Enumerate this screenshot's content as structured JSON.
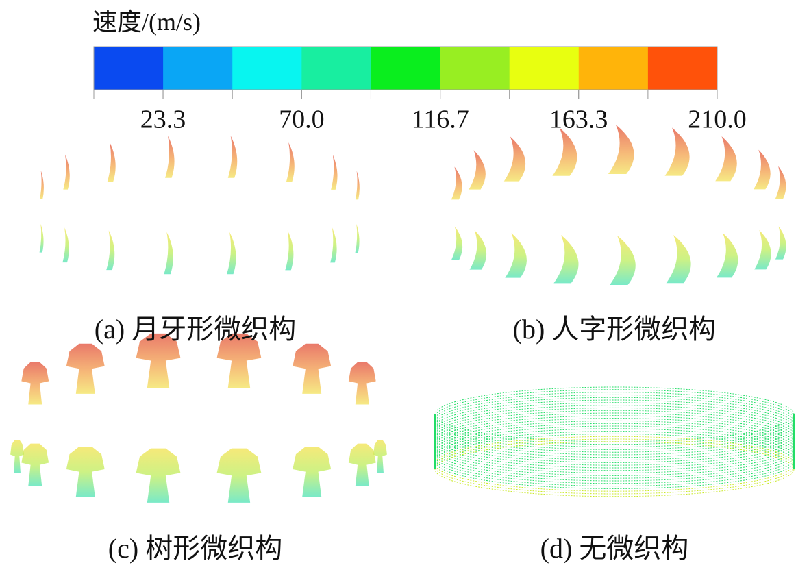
{
  "colorbar": {
    "title": "速度/(m/s)",
    "lim": [
      0,
      210
    ],
    "colors": [
      "#0a4af0",
      "#0aa6f5",
      "#08f5f0",
      "#18eea0",
      "#0aee1e",
      "#98ee22",
      "#e8ff10",
      "#ffb40a",
      "#ff520a"
    ],
    "ticks": [
      23.3,
      {
        "value": 70,
        "label": "70.0"
      },
      116.7,
      163.3,
      {
        "value": 210,
        "label": "210.0"
      }
    ]
  },
  "panels": [
    {
      "caption": "(a) 月牙形微织构"
    },
    {
      "caption": "(b) 人字形微织构"
    },
    {
      "caption": "(c) 树形微织构"
    },
    {
      "caption": "(d) 无微织构"
    }
  ]
}
